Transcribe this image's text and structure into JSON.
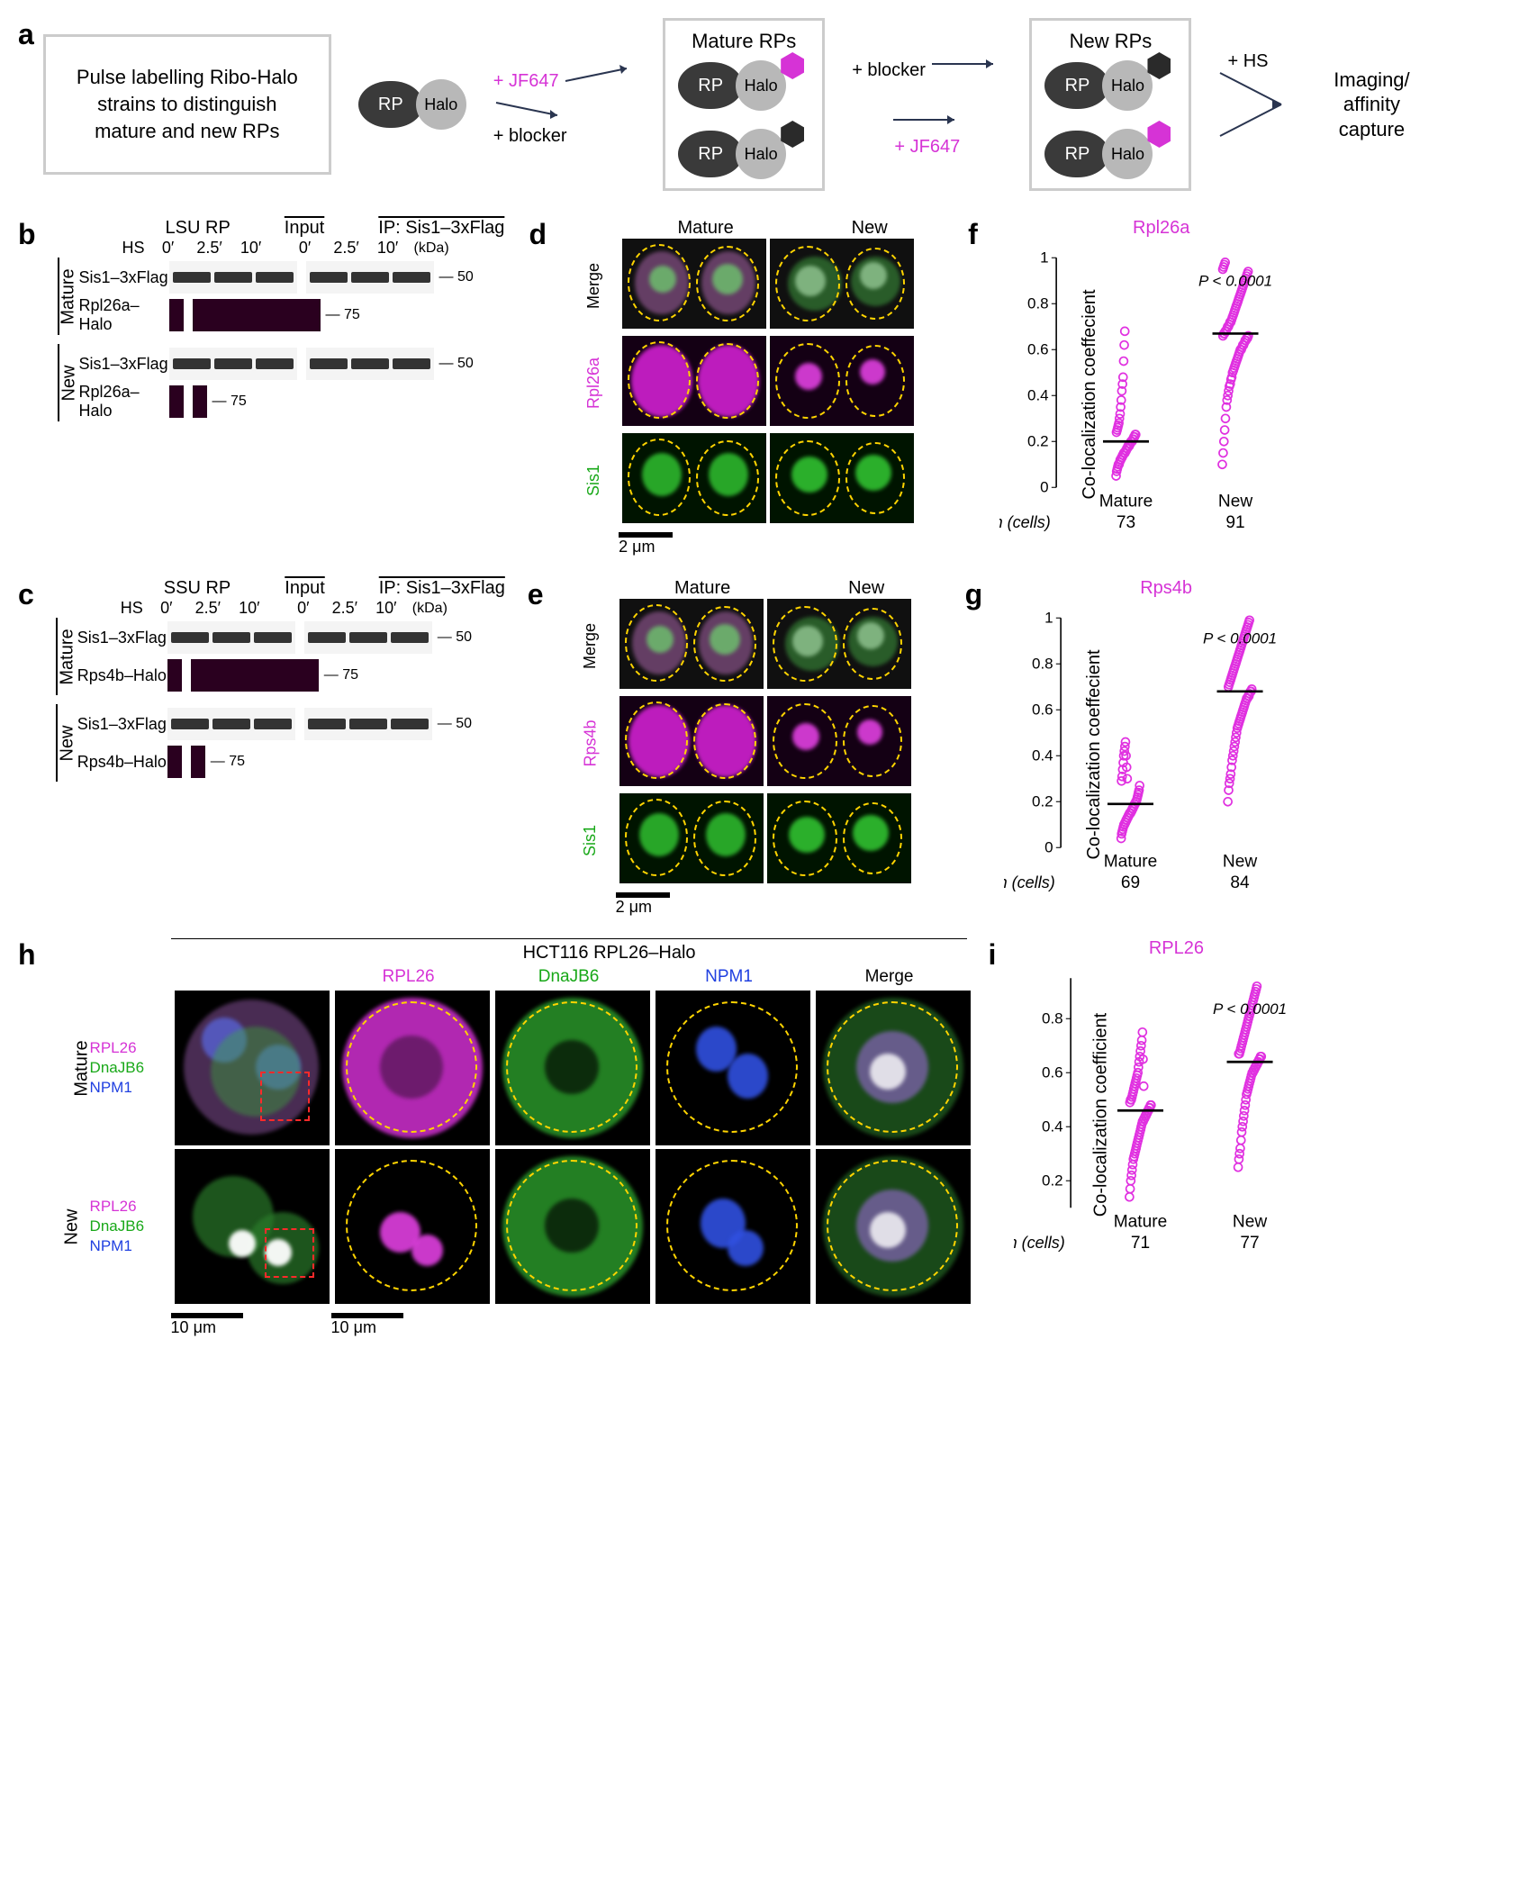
{
  "panel_labels": {
    "a": "a",
    "b": "b",
    "c": "c",
    "d": "d",
    "e": "e",
    "f": "f",
    "g": "g",
    "h": "h",
    "i": "i"
  },
  "a": {
    "desc": "Pulse labelling Ribo-Halo strains to distinguish mature and new RPs",
    "rp": "RP",
    "halo": "Halo",
    "mature_title": "Mature RPs",
    "new_title": "New RPs",
    "jf647": "+ JF647",
    "blocker": "+ blocker",
    "hs": "+ HS",
    "end": "Imaging/ affinity capture"
  },
  "b": {
    "title": "LSU RP",
    "input": "Input",
    "ip": "IP: Sis1–3xFlag",
    "hs_label": "HS",
    "times": [
      "0′",
      "2.5′",
      "10′"
    ],
    "kda": "(kDa)",
    "mature": "Mature",
    "new": "New",
    "row1": "Sis1–3xFlag",
    "row2": "Rpl26a–Halo",
    "m50": "50",
    "m75": "75"
  },
  "c": {
    "title": "SSU RP",
    "input": "Input",
    "ip": "IP: Sis1–3xFlag",
    "hs_label": "HS",
    "times": [
      "0′",
      "2.5′",
      "10′"
    ],
    "kda": "(kDa)",
    "mature": "Mature",
    "new": "New",
    "row1": "Sis1–3xFlag",
    "row2": "Rps4b–Halo",
    "m50": "50",
    "m75": "75"
  },
  "d": {
    "mature": "Mature",
    "new": "New",
    "rows": [
      "Merge",
      "Rpl26a",
      "Sis1"
    ],
    "row_colors": [
      "#000000",
      "#d633d6",
      "#18a818"
    ],
    "scale": "2 μm"
  },
  "e": {
    "mature": "Mature",
    "new": "New",
    "rows": [
      "Merge",
      "Rps4b",
      "Sis1"
    ],
    "row_colors": [
      "#000000",
      "#d633d6",
      "#18a818"
    ],
    "scale": "2 μm"
  },
  "f": {
    "title": "Rpl26a",
    "pval": "P < 0.0001",
    "ylabel": "Co-localization coeffecient",
    "yticks": [
      0,
      0.2,
      0.4,
      0.6,
      0.8,
      1.0
    ],
    "xlabels": [
      "Mature",
      "New"
    ],
    "n_label": "n (cells)",
    "n": [
      73,
      91
    ],
    "medians": [
      0.2,
      0.67
    ],
    "points_mature": [
      0.05,
      0.07,
      0.08,
      0.09,
      0.1,
      0.1,
      0.11,
      0.12,
      0.12,
      0.13,
      0.13,
      0.14,
      0.14,
      0.15,
      0.15,
      0.15,
      0.16,
      0.16,
      0.17,
      0.17,
      0.18,
      0.18,
      0.18,
      0.19,
      0.19,
      0.2,
      0.2,
      0.2,
      0.21,
      0.21,
      0.22,
      0.22,
      0.23,
      0.23,
      0.24,
      0.25,
      0.26,
      0.27,
      0.28,
      0.3,
      0.32,
      0.35,
      0.38,
      0.42,
      0.45,
      0.48,
      0.55,
      0.62,
      0.68
    ],
    "points_new": [
      0.1,
      0.15,
      0.2,
      0.25,
      0.3,
      0.35,
      0.38,
      0.4,
      0.42,
      0.44,
      0.45,
      0.47,
      0.48,
      0.5,
      0.51,
      0.52,
      0.53,
      0.54,
      0.55,
      0.56,
      0.57,
      0.58,
      0.59,
      0.6,
      0.6,
      0.61,
      0.62,
      0.62,
      0.63,
      0.64,
      0.64,
      0.65,
      0.65,
      0.66,
      0.66,
      0.67,
      0.67,
      0.68,
      0.68,
      0.69,
      0.7,
      0.7,
      0.71,
      0.72,
      0.72,
      0.73,
      0.74,
      0.75,
      0.76,
      0.77,
      0.78,
      0.79,
      0.8,
      0.81,
      0.82,
      0.83,
      0.84,
      0.85,
      0.86,
      0.87,
      0.88,
      0.89,
      0.9,
      0.91,
      0.92,
      0.93,
      0.94,
      0.95,
      0.96,
      0.97,
      0.98
    ],
    "color": "#e030e0"
  },
  "g": {
    "title": "Rps4b",
    "pval": "P < 0.0001",
    "ylabel": "Co-localization coeffecient",
    "yticks": [
      0,
      0.2,
      0.4,
      0.6,
      0.8,
      1.0
    ],
    "xlabels": [
      "Mature",
      "New"
    ],
    "n_label": "n (cells)",
    "n": [
      69,
      84
    ],
    "medians": [
      0.19,
      0.68
    ],
    "points_mature": [
      0.04,
      0.06,
      0.07,
      0.08,
      0.09,
      0.1,
      0.1,
      0.11,
      0.11,
      0.12,
      0.12,
      0.13,
      0.13,
      0.14,
      0.14,
      0.15,
      0.15,
      0.15,
      0.16,
      0.16,
      0.17,
      0.17,
      0.18,
      0.18,
      0.19,
      0.19,
      0.2,
      0.2,
      0.21,
      0.22,
      0.23,
      0.24,
      0.25,
      0.27,
      0.29,
      0.31,
      0.34,
      0.37,
      0.4,
      0.42,
      0.44,
      0.46,
      0.4,
      0.35,
      0.3
    ],
    "points_new": [
      0.2,
      0.25,
      0.28,
      0.3,
      0.32,
      0.35,
      0.38,
      0.4,
      0.42,
      0.44,
      0.46,
      0.48,
      0.5,
      0.52,
      0.53,
      0.54,
      0.55,
      0.56,
      0.57,
      0.58,
      0.59,
      0.6,
      0.61,
      0.62,
      0.63,
      0.64,
      0.65,
      0.65,
      0.66,
      0.66,
      0.67,
      0.68,
      0.68,
      0.69,
      0.7,
      0.71,
      0.72,
      0.73,
      0.74,
      0.75,
      0.76,
      0.77,
      0.78,
      0.79,
      0.8,
      0.81,
      0.82,
      0.83,
      0.84,
      0.85,
      0.86,
      0.87,
      0.88,
      0.89,
      0.9,
      0.91,
      0.92,
      0.93,
      0.94,
      0.95,
      0.96,
      0.97,
      0.98,
      0.99
    ],
    "color": "#e030e0"
  },
  "h": {
    "title": "HCT116  RPL26–Halo",
    "cols": [
      "RPL26",
      "DnaJB6",
      "NPM1",
      "Merge"
    ],
    "col_colors": [
      "#d633d6",
      "#18a818",
      "#2040e0",
      "#000000"
    ],
    "mature": "Mature",
    "new": "New",
    "legend": [
      "RPL26",
      "DnaJB6",
      "NPM1"
    ],
    "scale_left": "10 μm",
    "scale_right": "10 μm"
  },
  "i": {
    "title": "RPL26",
    "pval": "P < 0.0001",
    "ylabel": "Co-localization coefficient",
    "yticks": [
      0.2,
      0.4,
      0.6,
      0.8
    ],
    "xlabels": [
      "Mature",
      "New"
    ],
    "n_label": "n (cells)",
    "n": [
      71,
      77
    ],
    "medians": [
      0.46,
      0.64
    ],
    "ymin": 0.1,
    "ymax": 0.95,
    "points_mature": [
      0.14,
      0.17,
      0.2,
      0.22,
      0.24,
      0.26,
      0.28,
      0.29,
      0.3,
      0.31,
      0.32,
      0.33,
      0.34,
      0.35,
      0.36,
      0.37,
      0.38,
      0.39,
      0.4,
      0.41,
      0.42,
      0.42,
      0.43,
      0.43,
      0.44,
      0.44,
      0.45,
      0.45,
      0.46,
      0.46,
      0.47,
      0.47,
      0.48,
      0.48,
      0.49,
      0.5,
      0.5,
      0.51,
      0.52,
      0.53,
      0.54,
      0.55,
      0.56,
      0.57,
      0.58,
      0.59,
      0.6,
      0.62,
      0.64,
      0.66,
      0.68,
      0.7,
      0.72,
      0.75,
      0.65,
      0.55
    ],
    "points_new": [
      0.25,
      0.28,
      0.3,
      0.32,
      0.35,
      0.38,
      0.4,
      0.42,
      0.44,
      0.46,
      0.48,
      0.5,
      0.52,
      0.53,
      0.54,
      0.55,
      0.56,
      0.57,
      0.58,
      0.59,
      0.6,
      0.6,
      0.61,
      0.61,
      0.62,
      0.62,
      0.63,
      0.63,
      0.64,
      0.64,
      0.65,
      0.65,
      0.66,
      0.66,
      0.67,
      0.67,
      0.68,
      0.69,
      0.7,
      0.71,
      0.72,
      0.73,
      0.74,
      0.75,
      0.76,
      0.77,
      0.78,
      0.79,
      0.8,
      0.81,
      0.82,
      0.83,
      0.84,
      0.85,
      0.86,
      0.87,
      0.88,
      0.89,
      0.9,
      0.91,
      0.92
    ],
    "color": "#e030e0"
  }
}
